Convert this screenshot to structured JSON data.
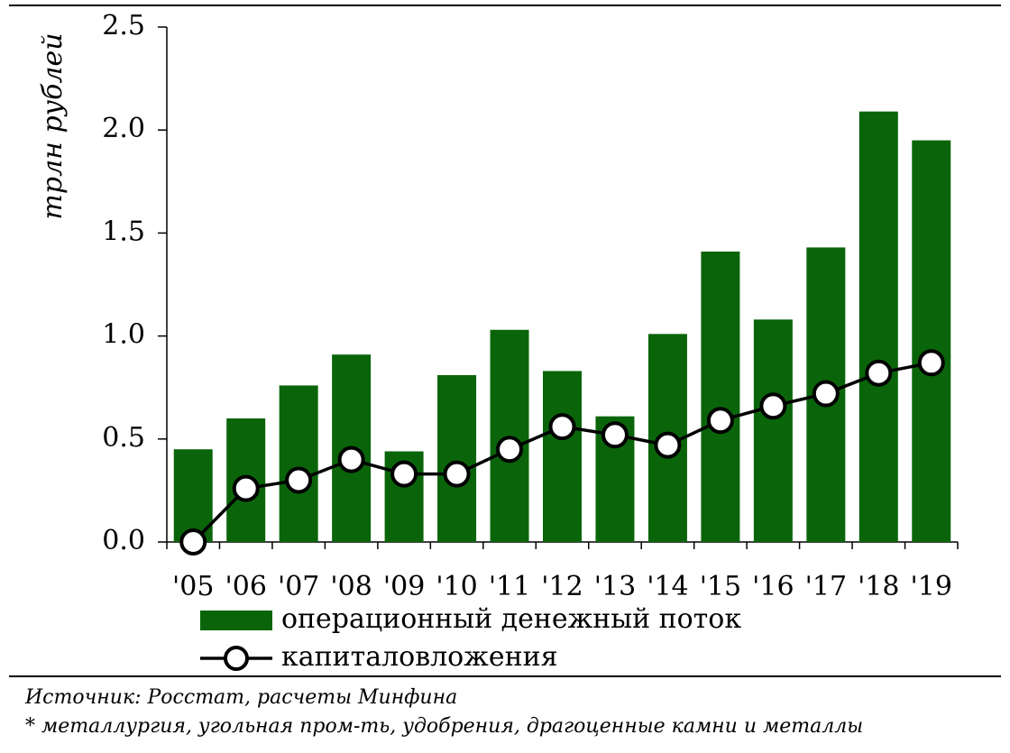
{
  "chart_data": {
    "type": "bar-line",
    "y_label": "трлн рублей",
    "categories": [
      "'05",
      "'06",
      "'07",
      "'08",
      "'09",
      "'10",
      "'11",
      "'12",
      "'13",
      "'14",
      "'15",
      "'16",
      "'17",
      "'18",
      "'19"
    ],
    "series": [
      {
        "name": "операционный денежный поток",
        "type": "bar",
        "color": "#0a650a",
        "values": [
          0.45,
          0.6,
          0.76,
          0.91,
          0.44,
          0.81,
          1.03,
          0.83,
          0.61,
          1.01,
          1.41,
          1.08,
          1.43,
          2.09,
          1.95
        ]
      },
      {
        "name": "капиталовложения",
        "type": "line",
        "color": "#000000",
        "values": [
          0.0,
          0.26,
          0.3,
          0.4,
          0.33,
          0.33,
          0.45,
          0.56,
          0.52,
          0.47,
          0.59,
          0.66,
          0.72,
          0.82,
          0.87
        ]
      }
    ],
    "ylim": [
      0,
      2.5
    ],
    "yticks": [
      {
        "value": 0,
        "label": "0.0"
      },
      0.5,
      {
        "value": 1,
        "label": "1.0"
      },
      1.5,
      {
        "value": 2,
        "label": "2.0"
      },
      2.5
    ],
    "notes": [
      "Источник: Росстат, расчеты Минфина",
      "* металлургия, угольная пром-ть, удобрения, драгоценные камни и металлы"
    ]
  }
}
